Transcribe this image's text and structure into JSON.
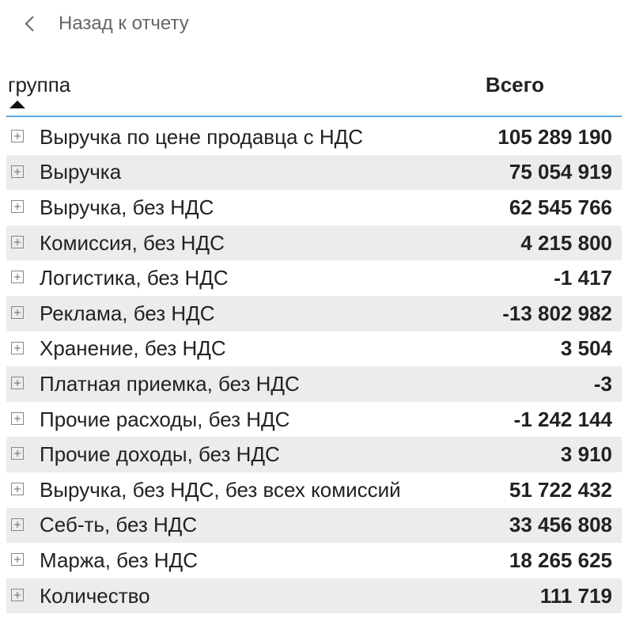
{
  "header": {
    "back": "Назад к отчету"
  },
  "table": {
    "columns": [
      "группа",
      "Всего"
    ],
    "rows": [
      [
        "Выручка по цене продавца с НДС",
        "105 289 190"
      ],
      [
        "Выручка",
        "75 054 919"
      ],
      [
        "Выручка, без НДС",
        "62 545 766"
      ],
      [
        "Комиссия, без НДС",
        "4 215 800"
      ],
      [
        "Логистика, без НДС",
        "-1 417"
      ],
      [
        "Реклама, без НДС",
        "-13 802 982"
      ],
      [
        "Хранение, без НДС",
        "3 504"
      ],
      [
        "Платная приемка, без НДС",
        "-3"
      ],
      [
        "Прочие расходы, без НДС",
        "-1 242 144"
      ],
      [
        "Прочие доходы, без НДС",
        "3 910"
      ],
      [
        "Выручка, без НДС, без всех комиссий",
        "51 722 432"
      ],
      [
        "Себ-ть, без НДС",
        "33 456 808"
      ],
      [
        "Маржа, без НДС",
        "18 265 625"
      ],
      [
        "Количество",
        "111 719"
      ]
    ]
  }
}
